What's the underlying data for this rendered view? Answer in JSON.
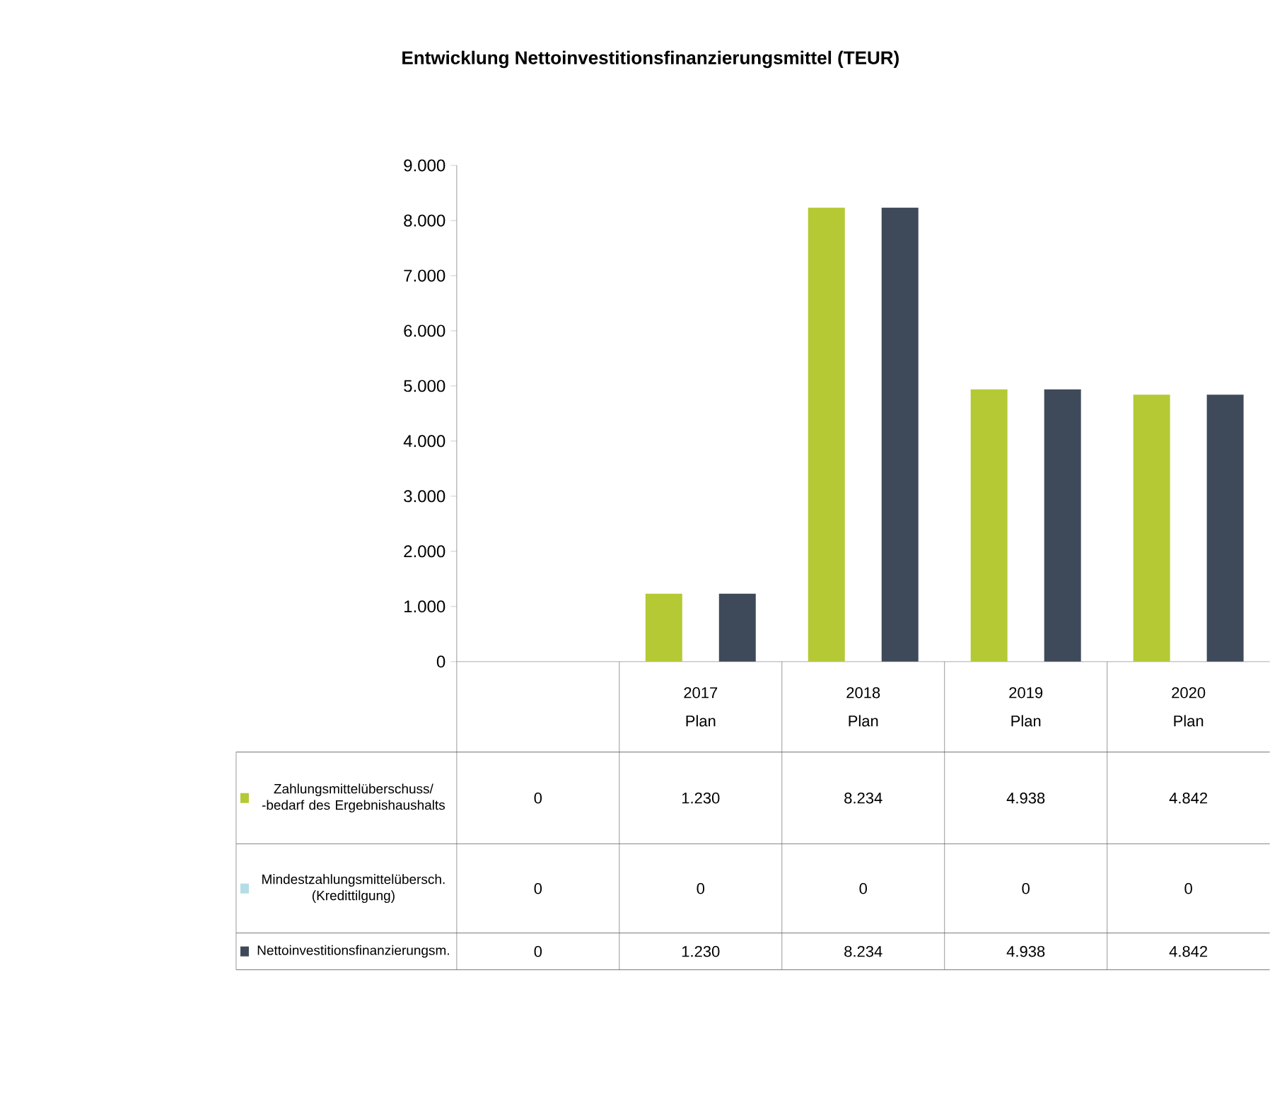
{
  "chart_data": {
    "type": "bar",
    "title": "Entwicklung Nettoinvestitionsfinanzierungsmittel (TEUR)",
    "categories": [
      null,
      "2017 Plan",
      "2018 Plan",
      "2019 Plan",
      "2020 Plan"
    ],
    "series": [
      {
        "name": "Zahlungsmittelüberschuss/ -bedarf des Ergebnishaushalts",
        "color": "#b5c935",
        "values": [
          0,
          1230,
          8234,
          4938,
          4842
        ],
        "value_labels": [
          "0",
          "1.230",
          "8.234",
          "4.938",
          "4.842"
        ]
      },
      {
        "name": "Mindestzahlungsmittelübersch. (Kredittilgung)",
        "color": "#b4dde6",
        "values": [
          0,
          0,
          0,
          0,
          0
        ],
        "value_labels": [
          "0",
          "0",
          "0",
          "0",
          "0"
        ]
      },
      {
        "name": "Nettoinvestitionsfinanzierungsm.",
        "color": "#3e4a5a",
        "values": [
          0,
          1230,
          8234,
          4938,
          4842
        ],
        "value_labels": [
          "0",
          "1.230",
          "8.234",
          "4.938",
          "4.842"
        ]
      }
    ],
    "legend": "bottom left",
    "ylim": [
      0,
      9000
    ],
    "yticks": [
      0,
      {
        "value": 1000,
        "label": "1.000"
      },
      {
        "value": 2000,
        "label": "2.000"
      },
      {
        "value": 3000,
        "label": "3.000"
      },
      {
        "value": 4000,
        "label": "4.000"
      },
      {
        "value": 5000,
        "label": "5.000"
      },
      {
        "value": 6000,
        "label": "6.000"
      },
      {
        "value": 7000,
        "label": "7.000"
      },
      {
        "value": 8000,
        "label": "8.000"
      },
      {
        "value": 9000,
        "label": "9.000"
      }
    ]
  }
}
